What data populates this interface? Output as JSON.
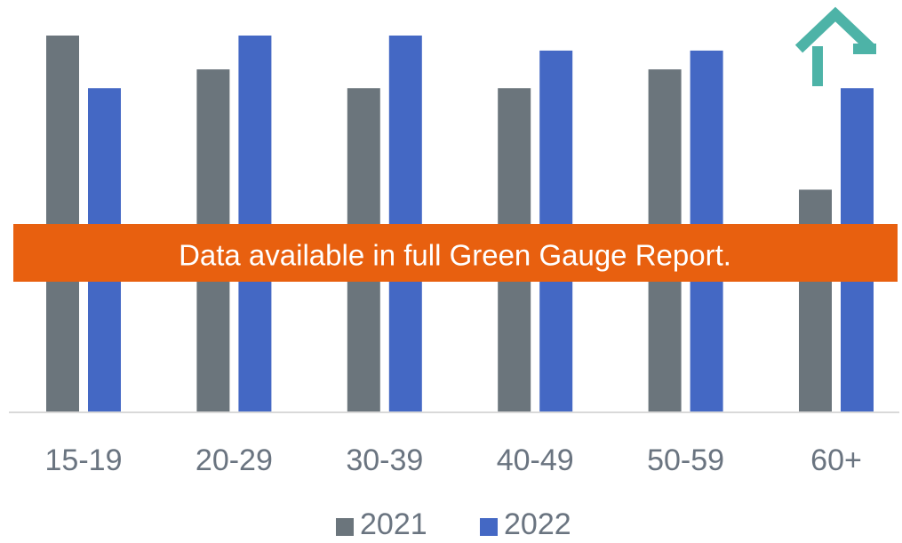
{
  "chart_data": {
    "type": "bar",
    "annotation": "Data available in full Green Gauge Report.",
    "categories": [
      "15-19",
      "20-29",
      "30-39",
      "40-49",
      "50-59",
      "60+"
    ],
    "series": [
      {
        "name": "2021",
        "color": "#6b757c",
        "values": [
          100,
          91,
          86,
          86,
          91,
          59
        ]
      },
      {
        "name": "2022",
        "color": "#4468c4",
        "values": [
          86,
          100,
          100,
          96,
          96,
          86
        ]
      }
    ],
    "ylim": [
      0,
      100
    ]
  }
}
